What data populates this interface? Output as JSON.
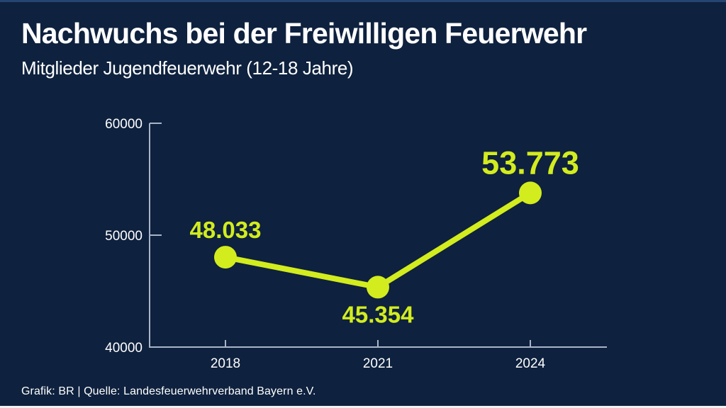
{
  "header": {
    "title": "Nachwuchs bei der Freiwilligen Feuerwehr",
    "subtitle": "Mitglieder Jugendfeuerwehr (12-18 Jahre)"
  },
  "footer": {
    "credit": "Grafik: BR | Quelle: Landesfeuerwehrverband Bayern e.V."
  },
  "colors": {
    "background": "#0e213e",
    "accent_line": "#d2ec1e",
    "axis": "#aab4c8",
    "text": "#ffffff",
    "top_band": "#24456f",
    "bottom_band": "#f2f2f2"
  },
  "chart_data": {
    "type": "line",
    "title": "Nachwuchs bei der Freiwilligen Feuerwehr",
    "subtitle": "Mitglieder Jugendfeuerwehr (12-18 Jahre)",
    "xlabel": "",
    "ylabel": "",
    "categories": [
      "2018",
      "2021",
      "2024"
    ],
    "series": [
      {
        "name": "Mitglieder Jugendfeuerwehr (12-18 Jahre)",
        "values": [
          48033,
          45354,
          53773
        ]
      }
    ],
    "point_labels": [
      "48.033",
      "45.354",
      "53.773"
    ],
    "point_label_positions": [
      "above",
      "below",
      "above"
    ],
    "emphasis_index": 2,
    "ylim": [
      40000,
      60000
    ],
    "y_ticks": [
      60000,
      50000,
      40000
    ],
    "y_tick_labels": [
      "60000",
      "50000",
      "40000"
    ],
    "grid": false,
    "legend": false
  }
}
